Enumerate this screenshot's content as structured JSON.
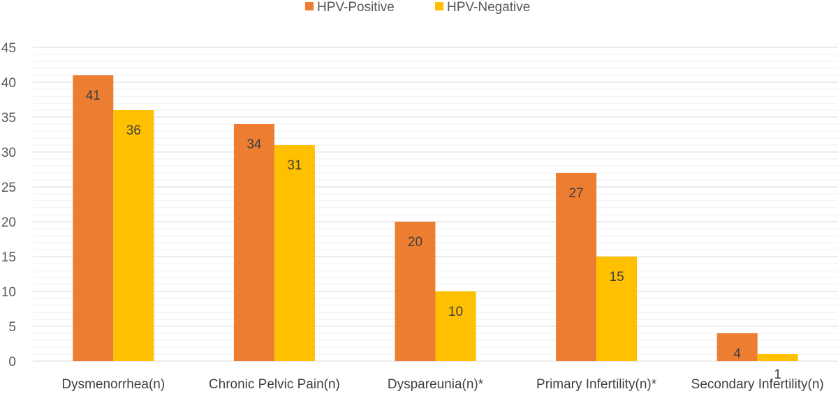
{
  "chart_data": {
    "type": "bar",
    "title": "",
    "xlabel": "",
    "ylabel": "",
    "categories": [
      "Dysmenorrhea(n)",
      "Chronic Pelvic Pain(n)",
      "Dyspareunia(n)*",
      "Primary Infertility(n)*",
      "Secondary Infertility(n)"
    ],
    "series": [
      {
        "name": "HPV-Positive",
        "color": "#ED7D31",
        "values": [
          41,
          34,
          20,
          27,
          4
        ]
      },
      {
        "name": "HPV-Negative",
        "color": "#FFC000",
        "values": [
          36,
          31,
          10,
          15,
          1
        ]
      }
    ],
    "ylim": [
      0,
      45
    ],
    "yticks": [
      0,
      5,
      10,
      15,
      20,
      25,
      30,
      35,
      40,
      45
    ],
    "legend_position": "top-center",
    "grid": true
  }
}
